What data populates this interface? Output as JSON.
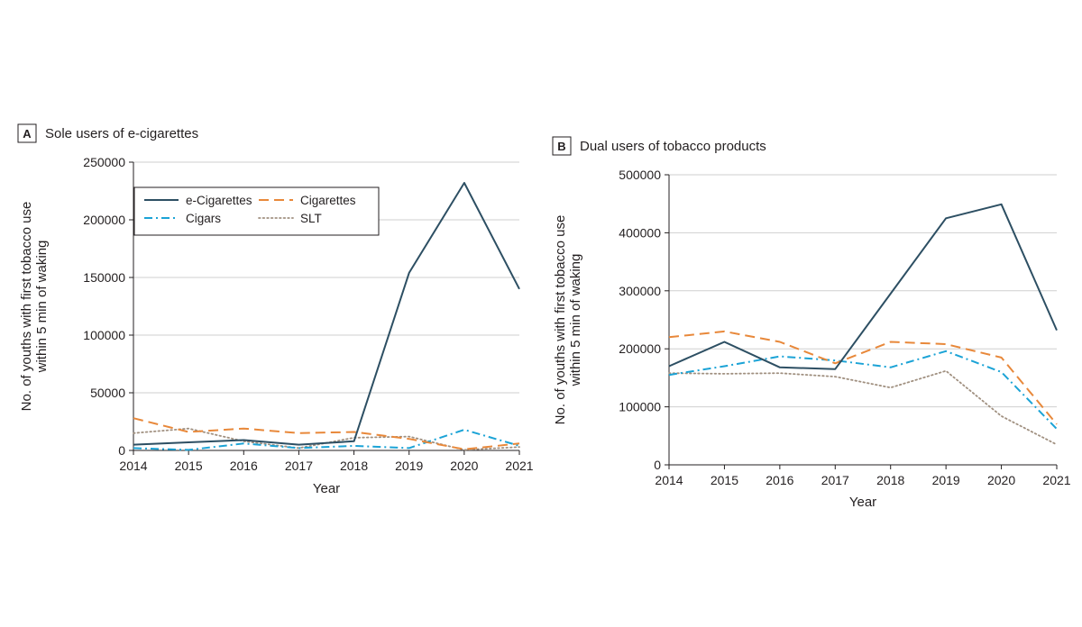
{
  "chart_data": [
    {
      "type": "line",
      "panel_letter": "A",
      "title": "Sole users of e-cigarettes",
      "xlabel": "Year",
      "ylabel_lines": [
        "No. of youths with first tobacco use",
        "within 5 min of waking"
      ],
      "x": [
        "2014",
        "2015",
        "2016",
        "2017",
        "2018",
        "2019",
        "2020",
        "2021"
      ],
      "ylim": [
        0,
        250000
      ],
      "yticks": [
        0,
        50000,
        100000,
        150000,
        200000,
        250000
      ],
      "ytick_labels": [
        "0",
        "50000",
        "100000",
        "150000",
        "200000",
        "250000"
      ],
      "grid": "horizontal",
      "legend": {
        "placement": "top-left",
        "entries": [
          "e-Cigarettes",
          "Cigarettes",
          "Cigars",
          "SLT"
        ]
      },
      "series": [
        {
          "name": "e-Cigarettes",
          "style": "solid",
          "color": "#2d4f63",
          "values": [
            5000,
            7000,
            9000,
            5000,
            8000,
            154000,
            232000,
            140000
          ]
        },
        {
          "name": "Cigarettes",
          "style": "dashed",
          "color": "#e8883a",
          "values": [
            28000,
            16000,
            19000,
            15000,
            16000,
            10000,
            1000,
            6000
          ]
        },
        {
          "name": "Cigars",
          "style": "dashdot",
          "color": "#1ba3d6",
          "values": [
            2000,
            500,
            6000,
            2000,
            4000,
            2000,
            18000,
            4000
          ]
        },
        {
          "name": "SLT",
          "style": "dotted",
          "color": "#a09080",
          "values": [
            15000,
            19000,
            8000,
            2000,
            11000,
            12000,
            500,
            3000
          ]
        }
      ]
    },
    {
      "type": "line",
      "panel_letter": "B",
      "title": "Dual users of tobacco products",
      "xlabel": "Year",
      "ylabel_lines": [
        "No. of youths with first tobacco use",
        "within 5 min of waking"
      ],
      "x": [
        "2014",
        "2015",
        "2016",
        "2017",
        "2018",
        "2019",
        "2020",
        "2021"
      ],
      "ylim": [
        0,
        500000
      ],
      "yticks": [
        0,
        100000,
        200000,
        300000,
        400000,
        500000
      ],
      "ytick_labels": [
        "0",
        "100000",
        "200000",
        "300000",
        "400000",
        "500000"
      ],
      "grid": "horizontal",
      "series": [
        {
          "name": "e-Cigarettes",
          "style": "solid",
          "color": "#2d4f63",
          "values": [
            170000,
            212000,
            168000,
            165000,
            295000,
            425000,
            449000,
            232000
          ]
        },
        {
          "name": "Cigarettes",
          "style": "dashed",
          "color": "#e8883a",
          "values": [
            220000,
            230000,
            212000,
            175000,
            212000,
            208000,
            185000,
            70000
          ]
        },
        {
          "name": "Cigars",
          "style": "dashdot",
          "color": "#1ba3d6",
          "values": [
            155000,
            170000,
            187000,
            180000,
            168000,
            196000,
            160000,
            62000
          ]
        },
        {
          "name": "SLT",
          "style": "dotted",
          "color": "#a09080",
          "values": [
            158000,
            157000,
            158000,
            152000,
            133000,
            162000,
            84000,
            35000
          ]
        }
      ]
    }
  ]
}
